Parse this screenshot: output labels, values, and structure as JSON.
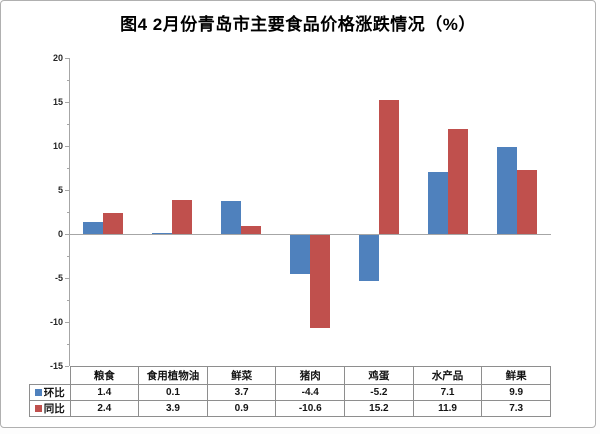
{
  "chart_data": {
    "type": "bar",
    "title": "图4  2月份青岛市主要食品价格涨跌情况（%）",
    "categories": [
      "粮食",
      "食用植物油",
      "鲜菜",
      "猪肉",
      "鸡蛋",
      "水产品",
      "鲜果"
    ],
    "series": [
      {
        "name": "环比",
        "color": "#4f81bd",
        "values": [
          1.4,
          0.1,
          3.7,
          -4.4,
          -5.2,
          7.1,
          9.9
        ]
      },
      {
        "name": "同比",
        "color": "#c0504d",
        "values": [
          2.4,
          3.9,
          0.9,
          -10.6,
          15.2,
          11.9,
          7.3
        ]
      }
    ],
    "xlabel": "",
    "ylabel": "",
    "ylim": [
      -15,
      20
    ],
    "yticks": [
      20,
      15,
      10,
      5,
      0,
      -5,
      -10,
      -15
    ],
    "ytick_interval": 5,
    "yminor_interval": 2.5,
    "grid": false,
    "legend_position": "data-table-left",
    "axis_color": "#a6a6a6",
    "tick_label_color": "#262626",
    "table_border_color": "#8e8e8e"
  }
}
